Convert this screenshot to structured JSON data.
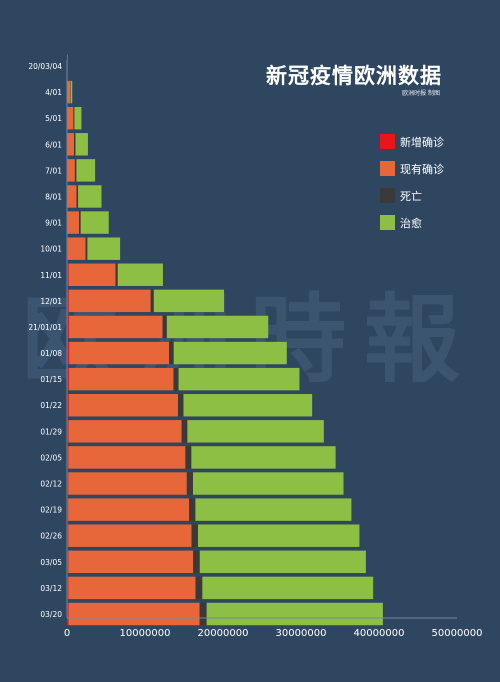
{
  "title": "新冠疫情欧洲数据",
  "subtitle": "欧洲时报 制图",
  "watermark": "欧洲時報",
  "colors": {
    "background": "#2e4660",
    "new_confirmed": "#e8161a",
    "active": "#e8673a",
    "deaths": "#3a3a3a",
    "recovered": "#8dbf45"
  },
  "legend": [
    {
      "label": "新增确诊",
      "color": "#e8161a"
    },
    {
      "label": "现有确诊",
      "color": "#e8673a"
    },
    {
      "label": "死亡",
      "color": "#3a3a3a"
    },
    {
      "label": "治愈",
      "color": "#8dbf45"
    }
  ],
  "chart_data": {
    "type": "bar",
    "orientation": "horizontal-stacked",
    "stacking_order": [
      "新增确诊",
      "现有确诊",
      "死亡",
      "治愈"
    ],
    "y_tick_labels": [
      "20/03/04",
      "4/01",
      "5/01",
      "6/01",
      "7/01",
      "8/01",
      "9/01",
      "10/01",
      "11/01",
      "12/01",
      "21/01/01",
      "01/08",
      "01/15",
      "01/22",
      "01/29",
      "02/05",
      "02/12",
      "02/19",
      "02/26",
      "03/05",
      "03/12",
      "03/20"
    ],
    "x_tick_labels": [
      "0",
      "10000000",
      "20000000",
      "30000000",
      "40000000",
      "50000000"
    ],
    "xlim": [
      0,
      50000000
    ],
    "grid": false,
    "legend_position": "top-right",
    "series": [
      {
        "name": "新增确诊",
        "dates": [
          "20/03/04",
          "4/01",
          "5/01",
          "6/01",
          "7/01",
          "8/01",
          "9/01",
          "10/01",
          "11/01",
          "12/01",
          "21/01/01",
          "01/08",
          "01/15",
          "01/22",
          "01/29",
          "02/05",
          "02/12",
          "02/19",
          "02/26",
          "03/05",
          "03/12",
          "03/20"
        ],
        "values": [
          500,
          30000,
          20000,
          12000,
          15000,
          20000,
          40000,
          80000,
          220000,
          230000,
          250000,
          280000,
          250000,
          230000,
          200000,
          180000,
          160000,
          150000,
          160000,
          170000,
          180000,
          200000
        ]
      },
      {
        "name": "现有确诊",
        "dates": [
          "20/03/04",
          "4/01",
          "5/01",
          "6/01",
          "7/01",
          "8/01",
          "9/01",
          "10/01",
          "11/01",
          "12/01",
          "21/01/01",
          "01/08",
          "01/15",
          "01/22",
          "01/29",
          "02/05",
          "02/12",
          "02/19",
          "02/26",
          "03/05",
          "03/12",
          "03/20"
        ],
        "values": [
          3000,
          400000,
          800000,
          900000,
          1000000,
          1200000,
          1500000,
          2300000,
          6000000,
          10500000,
          12000000,
          12800000,
          13400000,
          14000000,
          14500000,
          15000000,
          15200000,
          15500000,
          15800000,
          16000000,
          16300000,
          16800000
        ]
      },
      {
        "name": "死亡",
        "dates": [
          "20/03/04",
          "4/01",
          "5/01",
          "6/01",
          "7/01",
          "8/01",
          "9/01",
          "10/01",
          "11/01",
          "12/01",
          "21/01/01",
          "01/08",
          "01/15",
          "01/22",
          "01/29",
          "02/05",
          "02/12",
          "02/19",
          "02/26",
          "03/05",
          "03/12",
          "03/20"
        ],
        "values": [
          100,
          40000,
          130000,
          170000,
          190000,
          200000,
          210000,
          230000,
          280000,
          400000,
          550000,
          600000,
          650000,
          700000,
          730000,
          760000,
          790000,
          810000,
          830000,
          850000,
          870000,
          900000
        ]
      },
      {
        "name": "治愈",
        "dates": [
          "20/03/04",
          "4/01",
          "5/01",
          "6/01",
          "7/01",
          "8/01",
          "9/01",
          "10/01",
          "11/01",
          "12/01",
          "21/01/01",
          "01/08",
          "01/15",
          "01/22",
          "01/29",
          "02/05",
          "02/12",
          "02/19",
          "02/26",
          "03/05",
          "03/12",
          "03/20"
        ],
        "values": [
          300,
          200000,
          900000,
          1600000,
          2400000,
          3000000,
          3600000,
          4200000,
          5800000,
          9000000,
          13000000,
          14500000,
          15500000,
          16500000,
          17500000,
          18500000,
          19300000,
          20000000,
          20700000,
          21300000,
          21900000,
          22600000
        ]
      }
    ]
  }
}
